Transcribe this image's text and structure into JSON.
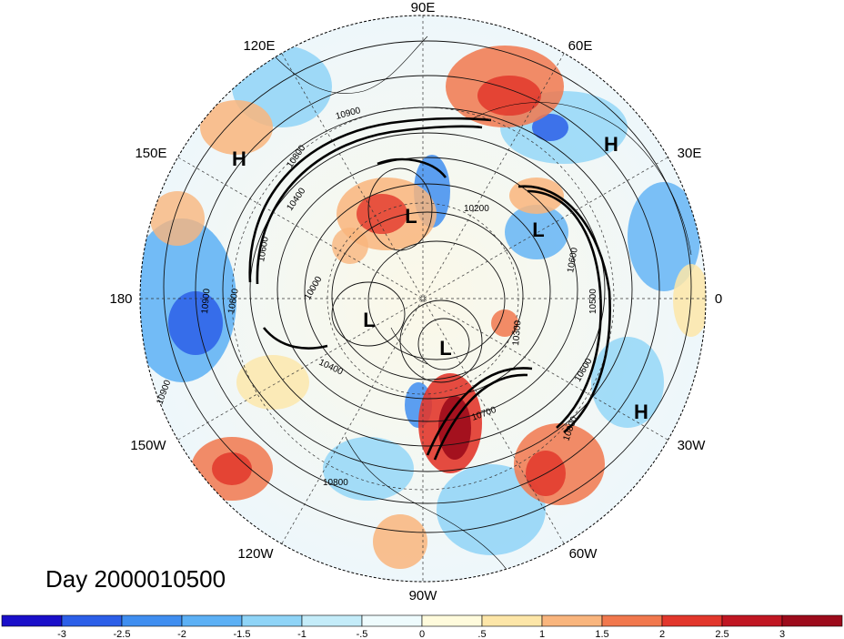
{
  "title": "Day 2000010500",
  "map": {
    "projection": "north-polar-stereographic",
    "longitude_labels": [
      "90E",
      "60E",
      "30E",
      "0",
      "30W",
      "60W",
      "90W",
      "120W",
      "150W",
      "180",
      "150E",
      "120E"
    ],
    "pressure_centers": [
      "H",
      "H",
      "H",
      "L",
      "L",
      "L",
      "L"
    ],
    "contour_labels": [
      "10900",
      "10800",
      "10400",
      "10600",
      "10200",
      "10500",
      "10000",
      "10300",
      "10700",
      "10400",
      "10600",
      "10800",
      "10800",
      "10900",
      "10900",
      "10600",
      "10800"
    ],
    "colors": {
      "ocean_outline": "#000000",
      "grid": "#333333"
    }
  },
  "colorbar": {
    "tick_labels": [
      "-3",
      "-2.5",
      "-2",
      "-1.5",
      "-1",
      "-.5",
      "0",
      ".5",
      "1",
      "1.5",
      "2",
      "2.5",
      "3"
    ],
    "colors": [
      "#1a0fc9",
      "#2c5fe8",
      "#3f8ef0",
      "#5cb0f5",
      "#8fd4f7",
      "#c4ecf9",
      "#eefbfd",
      "#fffbdc",
      "#fde6a8",
      "#f9b57d",
      "#f1784d",
      "#e2372c",
      "#c01622",
      "#9c0b1b"
    ]
  }
}
